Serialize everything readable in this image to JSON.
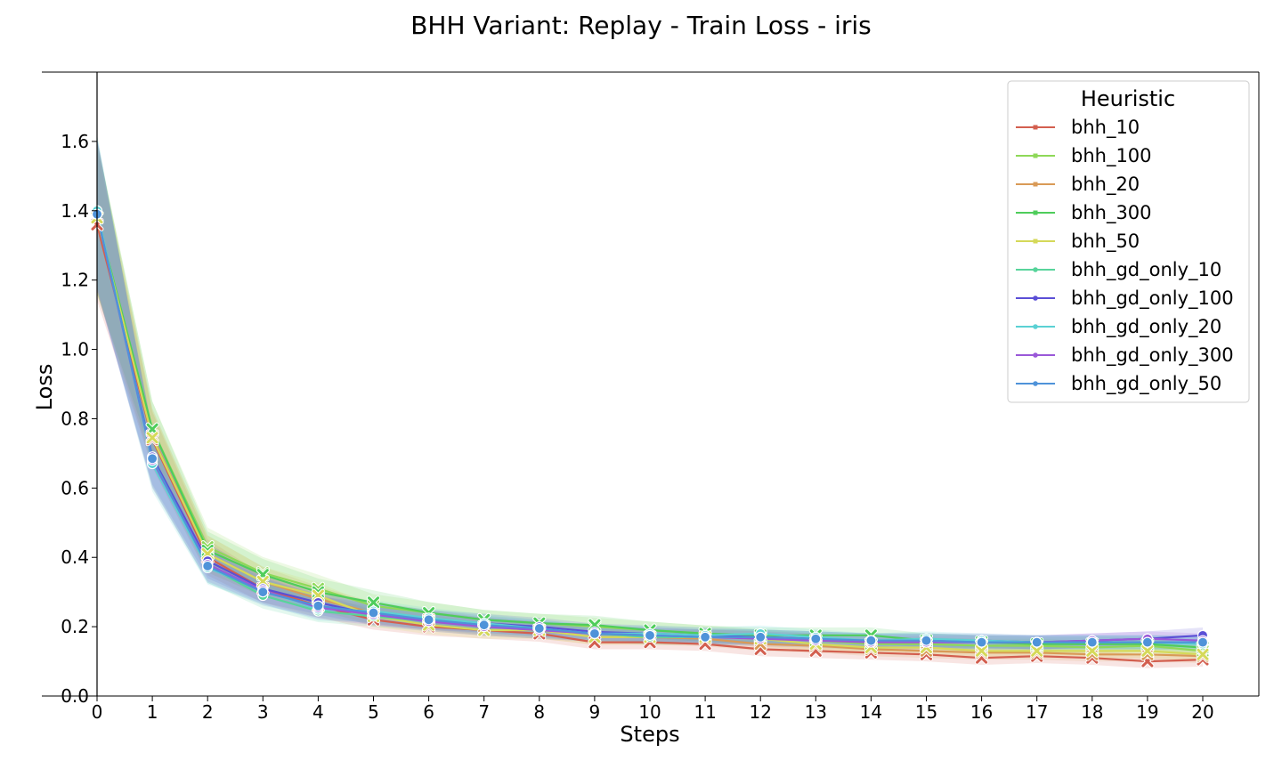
{
  "chart_data": {
    "type": "line",
    "title": "BHH Variant: Replay - Train Loss - iris",
    "xlabel": "Steps",
    "ylabel": "Loss",
    "x": [
      0,
      1,
      2,
      3,
      4,
      5,
      6,
      7,
      8,
      9,
      10,
      11,
      12,
      13,
      14,
      15,
      16,
      17,
      18,
      19,
      20
    ],
    "xlim": [
      0,
      20
    ],
    "ylim": [
      0,
      1.8
    ],
    "x_ticks": [
      "0",
      "1",
      "2",
      "3",
      "4",
      "5",
      "6",
      "7",
      "8",
      "9",
      "10",
      "11",
      "12",
      "13",
      "14",
      "15",
      "16",
      "17",
      "18",
      "19",
      "20"
    ],
    "y_ticks": [
      "0.0",
      "0.2",
      "0.4",
      "0.6",
      "0.8",
      "1.0",
      "1.2",
      "1.4",
      "1.6"
    ],
    "legend": {
      "title": "Heuristic",
      "position": "top-right"
    },
    "series": [
      {
        "name": "bhh_10",
        "color": "#d35f4f",
        "marker": "x",
        "values": [
          1.36,
          0.74,
          0.4,
          0.31,
          0.26,
          0.22,
          0.2,
          0.19,
          0.18,
          0.155,
          0.155,
          0.15,
          0.135,
          0.13,
          0.125,
          0.12,
          0.11,
          0.115,
          0.11,
          0.1,
          0.105
        ]
      },
      {
        "name": "bhh_100",
        "color": "#8ed858",
        "marker": "x",
        "values": [
          1.38,
          0.77,
          0.43,
          0.355,
          0.31,
          0.26,
          0.24,
          0.22,
          0.21,
          0.2,
          0.19,
          0.18,
          0.17,
          0.16,
          0.15,
          0.15,
          0.145,
          0.145,
          0.14,
          0.145,
          0.13
        ]
      },
      {
        "name": "bhh_20",
        "color": "#d99a57",
        "marker": "x",
        "values": [
          1.38,
          0.75,
          0.41,
          0.33,
          0.28,
          0.24,
          0.22,
          0.2,
          0.19,
          0.17,
          0.17,
          0.165,
          0.15,
          0.145,
          0.135,
          0.13,
          0.125,
          0.125,
          0.12,
          0.12,
          0.115
        ]
      },
      {
        "name": "bhh_300",
        "color": "#4fcd5b",
        "marker": "x",
        "values": [
          1.38,
          0.77,
          0.42,
          0.35,
          0.3,
          0.27,
          0.24,
          0.22,
          0.21,
          0.205,
          0.19,
          0.18,
          0.175,
          0.175,
          0.175,
          0.16,
          0.155,
          0.15,
          0.15,
          0.15,
          0.14
        ]
      },
      {
        "name": "bhh_50",
        "color": "#d5d959",
        "marker": "x",
        "values": [
          1.38,
          0.745,
          0.41,
          0.33,
          0.29,
          0.23,
          0.205,
          0.19,
          0.19,
          0.17,
          0.17,
          0.17,
          0.165,
          0.15,
          0.14,
          0.14,
          0.13,
          0.13,
          0.13,
          0.13,
          0.12
        ]
      },
      {
        "name": "bhh_gd_only_10",
        "color": "#58d49b",
        "marker": "o",
        "values": [
          1.4,
          0.68,
          0.375,
          0.29,
          0.245,
          0.23,
          0.215,
          0.2,
          0.19,
          0.18,
          0.17,
          0.17,
          0.17,
          0.165,
          0.16,
          0.16,
          0.155,
          0.155,
          0.155,
          0.155,
          0.155
        ]
      },
      {
        "name": "bhh_gd_only_100",
        "color": "#5b4fd6",
        "marker": "o",
        "values": [
          1.39,
          0.69,
          0.39,
          0.31,
          0.27,
          0.235,
          0.22,
          0.21,
          0.2,
          0.185,
          0.18,
          0.175,
          0.17,
          0.165,
          0.16,
          0.16,
          0.16,
          0.155,
          0.16,
          0.165,
          0.175
        ]
      },
      {
        "name": "bhh_gd_only_20",
        "color": "#5bd1d4",
        "marker": "o",
        "values": [
          1.4,
          0.67,
          0.37,
          0.305,
          0.25,
          0.245,
          0.225,
          0.21,
          0.195,
          0.18,
          0.18,
          0.175,
          0.18,
          0.17,
          0.16,
          0.165,
          0.16,
          0.155,
          0.155,
          0.155,
          0.15
        ]
      },
      {
        "name": "bhh_gd_only_300",
        "color": "#9a58d8",
        "marker": "o",
        "values": [
          1.39,
          0.68,
          0.38,
          0.305,
          0.255,
          0.235,
          0.215,
          0.2,
          0.19,
          0.18,
          0.175,
          0.17,
          0.165,
          0.16,
          0.155,
          0.155,
          0.155,
          0.155,
          0.16,
          0.165,
          0.16
        ]
      },
      {
        "name": "bhh_gd_only_50",
        "color": "#4f93d9",
        "marker": "o",
        "values": [
          1.39,
          0.685,
          0.375,
          0.3,
          0.26,
          0.24,
          0.22,
          0.205,
          0.195,
          0.18,
          0.175,
          0.17,
          0.17,
          0.165,
          0.16,
          0.16,
          0.155,
          0.155,
          0.155,
          0.155,
          0.155
        ]
      }
    ]
  }
}
